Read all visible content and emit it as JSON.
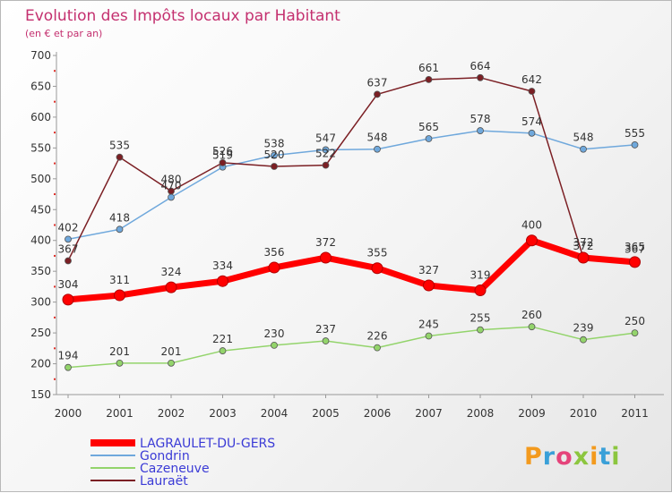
{
  "chart_data": {
    "type": "line",
    "title": "Evolution des Impôts locaux par Habitant",
    "subtitle": "(en € et par an)",
    "x": [
      "2000",
      "2001",
      "2002",
      "2003",
      "2004",
      "2005",
      "2006",
      "2007",
      "2008",
      "2009",
      "2010",
      "2011"
    ],
    "ylim": [
      150,
      700
    ],
    "yticks": [
      150,
      200,
      250,
      300,
      350,
      400,
      450,
      500,
      550,
      600,
      650,
      700
    ],
    "grid": false,
    "legend_position": "bottom-left",
    "series": [
      {
        "name": "LAGRAULET-DU-GERS",
        "color": "#ff0000",
        "values": [
          304,
          311,
          324,
          334,
          356,
          372,
          355,
          327,
          319,
          400,
          372,
          365
        ]
      },
      {
        "name": "Gondrin",
        "color": "#6fa8dc",
        "values": [
          402,
          418,
          470,
          519,
          538,
          547,
          548,
          565,
          578,
          574,
          548,
          555
        ]
      },
      {
        "name": "Cazeneuve",
        "color": "#93d46b",
        "values": [
          194,
          201,
          201,
          221,
          230,
          237,
          226,
          245,
          255,
          260,
          239,
          250
        ]
      },
      {
        "name": "Lauraët",
        "color": "#7b1f24",
        "values": [
          367,
          535,
          480,
          526,
          520,
          522,
          637,
          661,
          664,
          642,
          372,
          367
        ]
      }
    ]
  },
  "logo": {
    "text": "Proxiti"
  }
}
